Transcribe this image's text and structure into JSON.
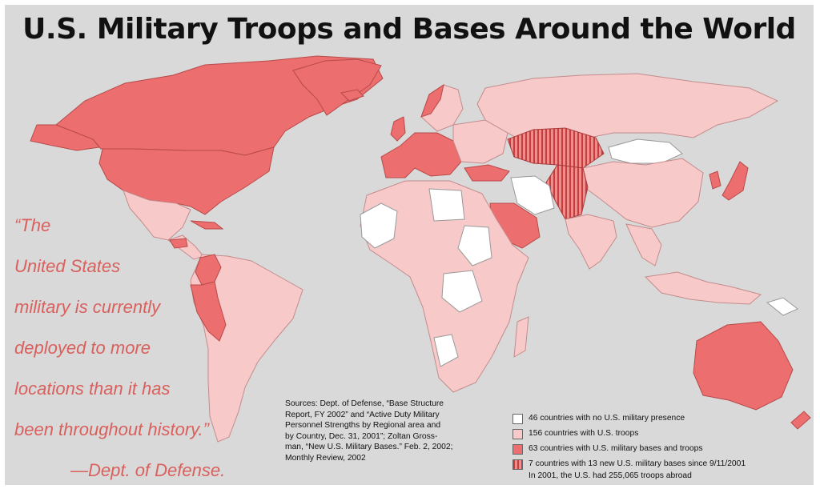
{
  "title": "U.S. Military Troops and Bases Around the World",
  "quote": {
    "lines": [
      "“The",
      "United States",
      "military is currently",
      "deployed to more",
      "locations than it has",
      "been throughout history.”"
    ],
    "attribution": "—Dept. of Defense."
  },
  "sources": {
    "lines": [
      "Sources: Dept. of Defense, “Base Structure",
      "Report, FY 2002” and “Active Duty Military",
      "Personnel Strengths by Regional area and",
      "by Country, Dec. 31, 2001”; Zoltan Gross-",
      "man, “New U.S. Military Bases.” Feb. 2, 2002;",
      "Monthly Review, 2002"
    ]
  },
  "legend": {
    "items": [
      {
        "label": "46 countries with no U.S. military presence",
        "color": "#ffffff",
        "pattern": "solid"
      },
      {
        "label": "156 countries with U.S. troops",
        "color": "#f7c9c9",
        "pattern": "solid"
      },
      {
        "label": "63 countries with U.S. military bases and troops",
        "color": "#ec6e6e",
        "pattern": "solid"
      },
      {
        "label": "7 countries with 13 new U.S. military bases since 9/11/2001",
        "color": "#ec6e6e",
        "pattern": "stripes"
      }
    ],
    "total": "In 2001, the U.S. had 255,065 troops abroad"
  },
  "colors": {
    "background": "#d9d9d9",
    "no_presence": "#ffffff",
    "troops": "#f7c9c9",
    "bases": "#ec6e6e",
    "new_bases": "#c94848",
    "quote_text": "#d9605c"
  }
}
